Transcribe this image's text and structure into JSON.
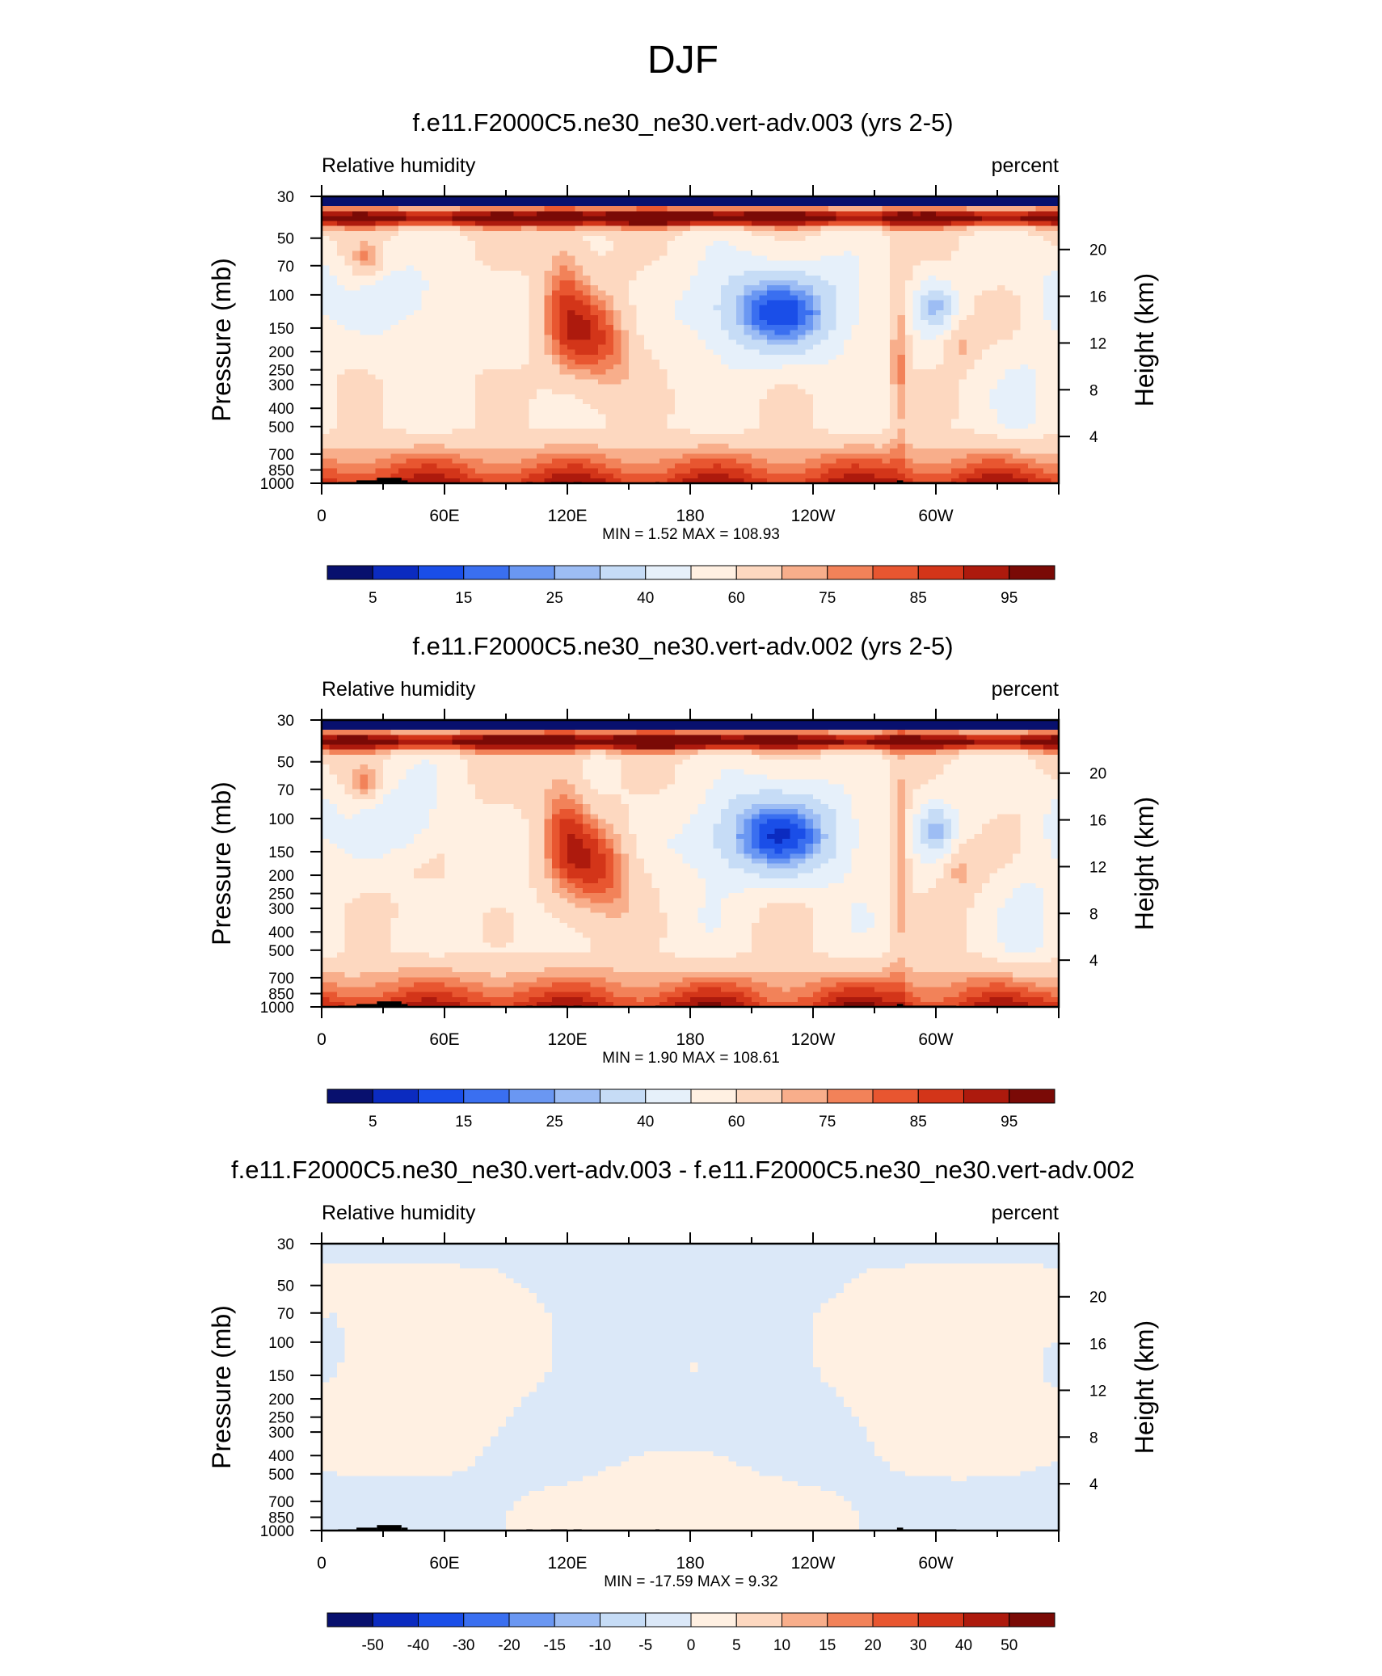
{
  "figure_title": "DJF",
  "colors": {
    "rh_scale": [
      "#08106e",
      "#0b2bc0",
      "#1a4ee8",
      "#3a6ff0",
      "#6a97f2",
      "#9dbdf4",
      "#c6dcf6",
      "#e6f0fa",
      "#fff0e2",
      "#fdd8c0",
      "#f8ae8b",
      "#f28259",
      "#e85630",
      "#d33519",
      "#ad1a0d",
      "#7a0a06"
    ],
    "diff_scale": [
      "#08106e",
      "#0b2bc0",
      "#1a4ee8",
      "#3a6ff0",
      "#6a97f2",
      "#9dbdf4",
      "#c6dcf6",
      "#dbe8f8",
      "#fff0e2",
      "#fdd8c0",
      "#f8ae8b",
      "#f28259",
      "#e85630",
      "#d33519",
      "#ad1a0d",
      "#7a0a06"
    ]
  },
  "chart_data": [
    {
      "type": "heatmap",
      "title": "f.e11.F2000C5.ne30_ne30.vert-adv.003 (yrs 2-5)",
      "left_label": "Relative humidity",
      "right_label": "percent",
      "ylabel": "Pressure (mb)",
      "y2label": "Height (km)",
      "x_ticks": [
        "0",
        "60E",
        "120E",
        "180",
        "120W",
        "60W"
      ],
      "x_tick_values": [
        0,
        60,
        120,
        180,
        240,
        300
      ],
      "xlim": [
        0,
        360
      ],
      "y_ticks": [
        "30",
        "50",
        "70",
        "100",
        "150",
        "200",
        "250",
        "300",
        "400",
        "500",
        "700",
        "850",
        "1000"
      ],
      "y_tick_values": [
        30,
        50,
        70,
        100,
        150,
        200,
        250,
        300,
        400,
        500,
        700,
        850,
        1000
      ],
      "ylim": [
        30,
        1000
      ],
      "y2_ticks": [
        "20",
        "16",
        "12",
        "8",
        "4"
      ],
      "y2_tick_values": [
        20,
        16,
        12,
        8,
        4
      ],
      "min_max": "MIN =   1.52  MAX = 108.93",
      "colorbar_labels": [
        "5",
        "15",
        "25",
        "40",
        "60",
        "75",
        "85",
        "95"
      ],
      "levels": [
        5,
        10,
        15,
        20,
        25,
        30,
        40,
        50,
        60,
        70,
        75,
        80,
        85,
        90,
        95
      ]
    },
    {
      "type": "heatmap",
      "title": "f.e11.F2000C5.ne30_ne30.vert-adv.002 (yrs 2-5)",
      "left_label": "Relative humidity",
      "right_label": "percent",
      "ylabel": "Pressure (mb)",
      "y2label": "Height (km)",
      "x_ticks": [
        "0",
        "60E",
        "120E",
        "180",
        "120W",
        "60W"
      ],
      "x_tick_values": [
        0,
        60,
        120,
        180,
        240,
        300
      ],
      "xlim": [
        0,
        360
      ],
      "y_ticks": [
        "30",
        "50",
        "70",
        "100",
        "150",
        "200",
        "250",
        "300",
        "400",
        "500",
        "700",
        "850",
        "1000"
      ],
      "y_tick_values": [
        30,
        50,
        70,
        100,
        150,
        200,
        250,
        300,
        400,
        500,
        700,
        850,
        1000
      ],
      "ylim": [
        30,
        1000
      ],
      "y2_ticks": [
        "20",
        "16",
        "12",
        "8",
        "4"
      ],
      "y2_tick_values": [
        20,
        16,
        12,
        8,
        4
      ],
      "min_max": "MIN =   1.90  MAX = 108.61",
      "colorbar_labels": [
        "5",
        "15",
        "25",
        "40",
        "60",
        "75",
        "85",
        "95"
      ],
      "levels": [
        5,
        10,
        15,
        20,
        25,
        30,
        40,
        50,
        60,
        70,
        75,
        80,
        85,
        90,
        95
      ]
    },
    {
      "type": "heatmap",
      "title": "f.e11.F2000C5.ne30_ne30.vert-adv.003 - f.e11.F2000C5.ne30_ne30.vert-adv.002",
      "left_label": "Relative humidity",
      "right_label": "percent",
      "ylabel": "Pressure (mb)",
      "y2label": "Height (km)",
      "x_ticks": [
        "0",
        "60E",
        "120E",
        "180",
        "120W",
        "60W"
      ],
      "x_tick_values": [
        0,
        60,
        120,
        180,
        240,
        300
      ],
      "xlim": [
        0,
        360
      ],
      "y_ticks": [
        "30",
        "50",
        "70",
        "100",
        "150",
        "200",
        "250",
        "300",
        "400",
        "500",
        "700",
        "850",
        "1000"
      ],
      "y_tick_values": [
        30,
        50,
        70,
        100,
        150,
        200,
        250,
        300,
        400,
        500,
        700,
        850,
        1000
      ],
      "ylim": [
        30,
        1000
      ],
      "y2_ticks": [
        "20",
        "16",
        "12",
        "8",
        "4"
      ],
      "y2_tick_values": [
        20,
        16,
        12,
        8,
        4
      ],
      "min_max": "MIN = -17.59  MAX =   9.32",
      "colorbar_labels": [
        "-50",
        "-40",
        "-30",
        "-20",
        "-15",
        "-10",
        "-5",
        "0",
        "5",
        "10",
        "15",
        "20",
        "30",
        "40",
        "50"
      ],
      "levels": [
        -50,
        -40,
        -30,
        -20,
        -15,
        -10,
        -5,
        0,
        5,
        10,
        15,
        20,
        30,
        40,
        50
      ]
    }
  ]
}
